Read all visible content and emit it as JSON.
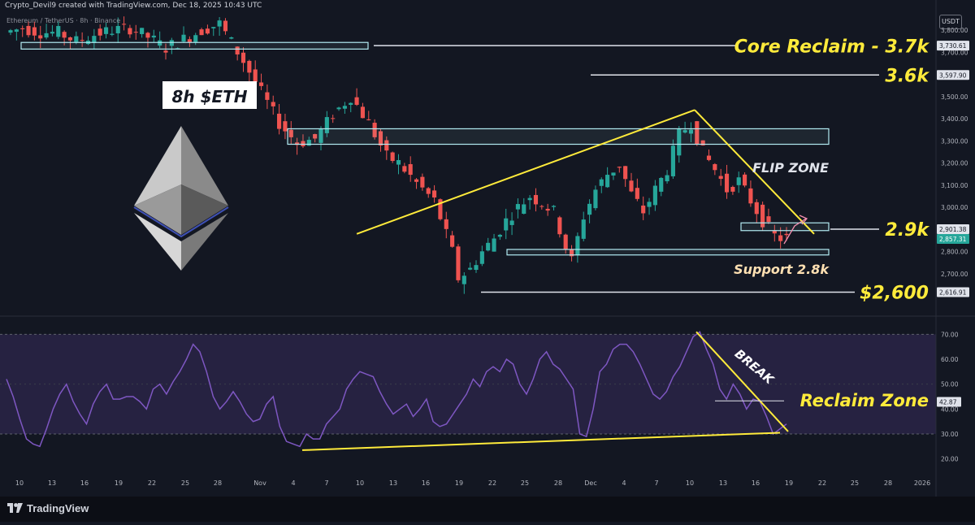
{
  "header": {
    "credit": "Crypto_Devil9 created with TradingView.com, Dec 18, 2025 10:43 UTC",
    "symbol": "Ethereum / TetherUS · 8h · Binance",
    "currency": "USDT"
  },
  "footer": {
    "brand": "TradingView"
  },
  "colors": {
    "background": "#131722",
    "up": "#26a69a",
    "down": "#ef5350",
    "annotation_yellow": "#ffeb3b",
    "rsi": "#7e57c2",
    "zone_border": "#b2ebf2"
  },
  "chart_data": [
    {
      "type": "candlestick",
      "title": "8h $ETH",
      "ylim": [
        2560,
        3900
      ],
      "y_ticks": [
        "3,800.00",
        "3,700.00",
        "3,600.00",
        "3,500.00",
        "3,400.00",
        "3,300.00",
        "3,200.00",
        "3,100.00",
        "3,000.00",
        "2,900.00",
        "2,800.00",
        "2,700.00"
      ],
      "price_labels": [
        {
          "text": "3,730.61",
          "value": 3730.61
        },
        {
          "text": "3,597.90",
          "value": 3597.9
        },
        {
          "text": "2,901.38",
          "value": 2901.38
        },
        {
          "text": "2,857.31",
          "value": 2857.31,
          "current": true
        },
        {
          "text": "2,616.91",
          "value": 2616.91
        }
      ],
      "x_ticks": [
        "10",
        "13",
        "16",
        "19",
        "22",
        "25",
        "28",
        "Nov",
        "4",
        "7",
        "10",
        "13",
        "16",
        "19",
        "22",
        "25",
        "28",
        "Dec",
        "4",
        "7",
        "10",
        "13",
        "16",
        "19",
        "22",
        "25",
        "28",
        "2026"
      ],
      "annotations": [
        "Core Reclaim - 3.7k",
        "3.6k",
        "FLIP ZONE",
        "2.9k",
        "Support 2.8k",
        "$2,600"
      ],
      "zones": [
        {
          "from": 3715,
          "to": 3745
        },
        {
          "from": 3285,
          "to": 3355
        },
        {
          "from": 2895,
          "to": 2930
        },
        {
          "from": 2785,
          "to": 2810
        }
      ],
      "levels": [
        3730.61,
        3597.9,
        2901.38,
        2616.91
      ],
      "trendlines": [
        {
          "from": [
            22,
            2880
          ],
          "to": [
            10.4,
            3440
          ]
        },
        {
          "from": [
            10.4,
            3440
          ],
          "to": [
            20.4,
            2880
          ]
        }
      ],
      "ohlc_trend": [
        [
          0,
          3790
        ],
        [
          3,
          3810
        ],
        [
          6,
          3790
        ],
        [
          9,
          3790
        ],
        [
          12,
          3750
        ],
        [
          15,
          3780
        ],
        [
          18,
          3800
        ],
        [
          21,
          3810
        ],
        [
          24,
          3770
        ],
        [
          27,
          3720
        ],
        [
          30,
          3760
        ],
        [
          33,
          3800
        ],
        [
          36,
          3830
        ],
        [
          40,
          3660
        ],
        [
          43,
          3520
        ],
        [
          46,
          3380
        ],
        [
          49,
          3290
        ],
        [
          52,
          3310
        ],
        [
          55,
          3420
        ],
        [
          58,
          3500
        ],
        [
          61,
          3380
        ],
        [
          64,
          3230
        ],
        [
          66,
          3200
        ],
        [
          69,
          3110
        ],
        [
          72,
          3030
        ],
        [
          75,
          2800
        ],
        [
          76,
          2680
        ],
        [
          78,
          2720
        ],
        [
          80,
          2800
        ],
        [
          82,
          2860
        ],
        [
          84,
          2940
        ],
        [
          86,
          3000
        ],
        [
          88,
          3050
        ],
        [
          90,
          3020
        ],
        [
          92,
          2980
        ],
        [
          94,
          2820
        ],
        [
          95,
          2760
        ],
        [
          97,
          2960
        ],
        [
          99,
          3080
        ],
        [
          101,
          3150
        ],
        [
          103,
          3190
        ],
        [
          105,
          3060
        ],
        [
          107,
          2980
        ],
        [
          109,
          3080
        ],
        [
          111,
          3170
        ],
        [
          113,
          3330
        ],
        [
          115,
          3380
        ],
        [
          117,
          3250
        ],
        [
          119,
          3170
        ],
        [
          121,
          3080
        ],
        [
          123,
          3120
        ],
        [
          125,
          3030
        ],
        [
          127,
          2940
        ],
        [
          129,
          2870
        ],
        [
          130,
          2860
        ]
      ]
    },
    {
      "type": "line",
      "ylim": [
        15,
        75
      ],
      "y_ticks": [
        "70.00",
        "60.00",
        "50.00",
        "40.00",
        "30.00",
        "20.00"
      ],
      "value_label": {
        "text": "42.87",
        "value": 42.87
      },
      "overbought": 70,
      "oversold": 30,
      "annotations": [
        "BREAK",
        "Reclaim Zone"
      ],
      "values": [
        52,
        45,
        36,
        28,
        26,
        25,
        32,
        40,
        46,
        50,
        43,
        38,
        34,
        42,
        47,
        50,
        44,
        44,
        45,
        45,
        43,
        40,
        48,
        50,
        46,
        51,
        55,
        60,
        66,
        63,
        55,
        45,
        40,
        43,
        47,
        43,
        38,
        35,
        36,
        42,
        45,
        33,
        27,
        26,
        25,
        30,
        28,
        28,
        34,
        37,
        40,
        48,
        52,
        55,
        54,
        53,
        47,
        42,
        38,
        40,
        42,
        37,
        40,
        44,
        35,
        33,
        34,
        38,
        42,
        46,
        52,
        49,
        55,
        57,
        55,
        60,
        58,
        50,
        46,
        52,
        60,
        63,
        58,
        56,
        52,
        48,
        30,
        29,
        40,
        55,
        58,
        64,
        66,
        66,
        63,
        58,
        52,
        46,
        44,
        47,
        53,
        57,
        63,
        69,
        71,
        64,
        58,
        48,
        44,
        50,
        46,
        40,
        44,
        43,
        37,
        30,
        32,
        34
      ],
      "trendlines": [
        {
          "from": [
            4.5,
            23.5
          ],
          "to": [
            18.4,
            30.8
          ]
        },
        {
          "from": [
            10.4,
            71
          ],
          "to": [
            18.8,
            31
          ]
        },
        {
          "from": [
            12.7,
            43.3
          ],
          "to": [
            18.8,
            43.3
          ]
        }
      ]
    }
  ]
}
